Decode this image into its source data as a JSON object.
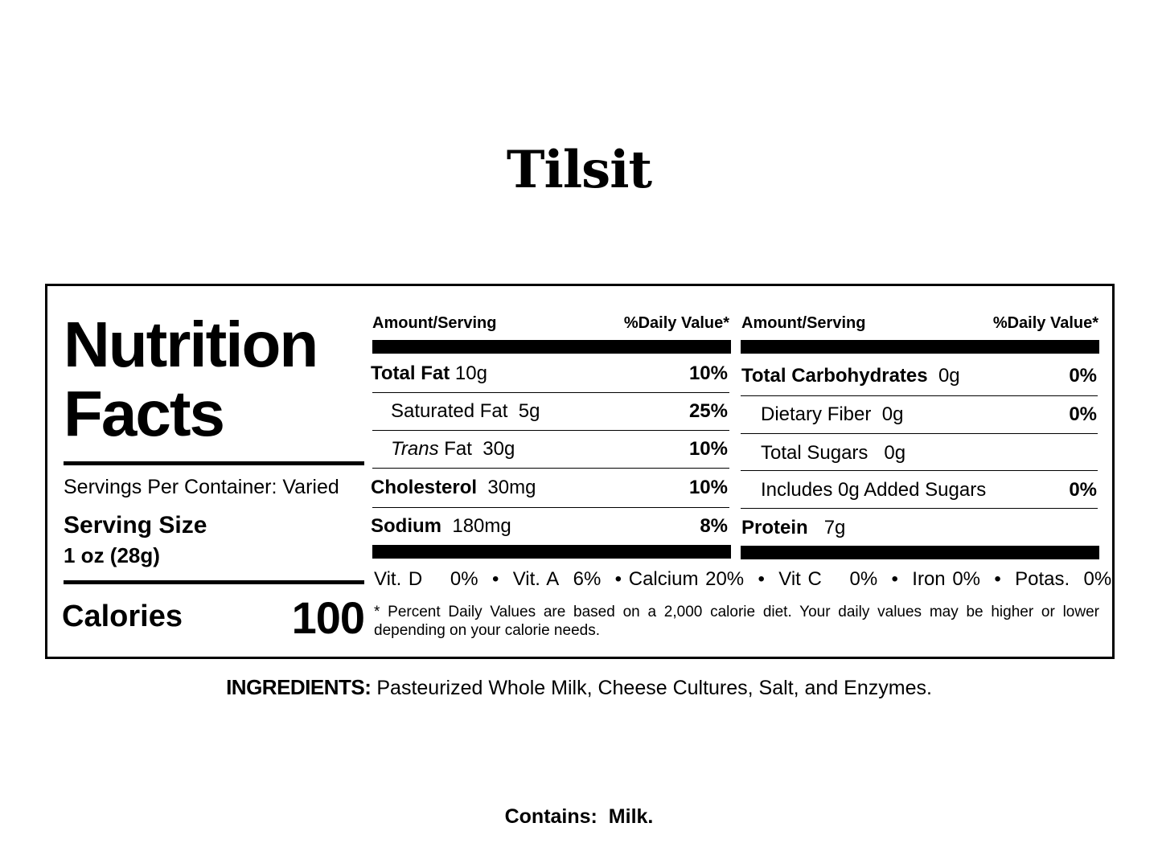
{
  "product_name": "Tilsit",
  "label": {
    "heading_line1": "Nutrition",
    "heading_line2": "Facts",
    "servings_per_container": "Servings Per Container: Varied",
    "serving_size_label": "Serving Size",
    "serving_size_value": "1 oz (28g)",
    "calories_label": "Calories",
    "calories_value": "100",
    "left_table": {
      "header_amount": "Amount/Serving",
      "header_dv": "%Daily Value*",
      "rows": [
        {
          "name": "Total Fat",
          "amount": "10g",
          "dv": "10%"
        },
        {
          "name": "Saturated Fat",
          "amount": "5g",
          "dv": "25%"
        },
        {
          "name_italic": "Trans",
          "name": "Fat",
          "amount": "30g",
          "dv": "10%"
        },
        {
          "name": "Cholesterol",
          "amount": "30mg",
          "dv": "10%"
        },
        {
          "name": "Sodium",
          "amount": "180mg",
          "dv": "8%"
        }
      ]
    },
    "right_table": {
      "header_amount": "Amount/Serving",
      "header_dv": "%Daily Value*",
      "rows": [
        {
          "name": "Total Carbohydrates",
          "amount": "0g",
          "dv": "0%"
        },
        {
          "name": "Dietary Fiber",
          "amount": "0g",
          "dv": "0%"
        },
        {
          "name": "Total Sugars",
          "amount": "0g",
          "dv": ""
        },
        {
          "name": "Includes 0g Added Sugars",
          "amount": "",
          "dv": "0%"
        },
        {
          "name": "Protein",
          "amount": "7g",
          "dv": ""
        }
      ]
    },
    "vitamins": [
      {
        "name": "Vit. D",
        "value": "0%"
      },
      {
        "name": "Vit. A",
        "value": "6%"
      },
      {
        "name": "Calcium",
        "value": "20%"
      },
      {
        "name": "Vit C",
        "value": "0%"
      },
      {
        "name": "Iron",
        "value": "0%"
      },
      {
        "name": "Potas.",
        "value": "0%"
      }
    ],
    "bullet": "•",
    "footnote": "* Percent Daily Values are based on a 2,000 calorie diet. Your daily values may be higher or lower depending on your calorie needs."
  },
  "ingredients": {
    "label": "INGREDIENTS:",
    "text": "Pasteurized Whole Milk, Cheese Cultures, Salt, and Enzymes."
  },
  "contains": {
    "label": "Contains:",
    "text": "Milk."
  }
}
